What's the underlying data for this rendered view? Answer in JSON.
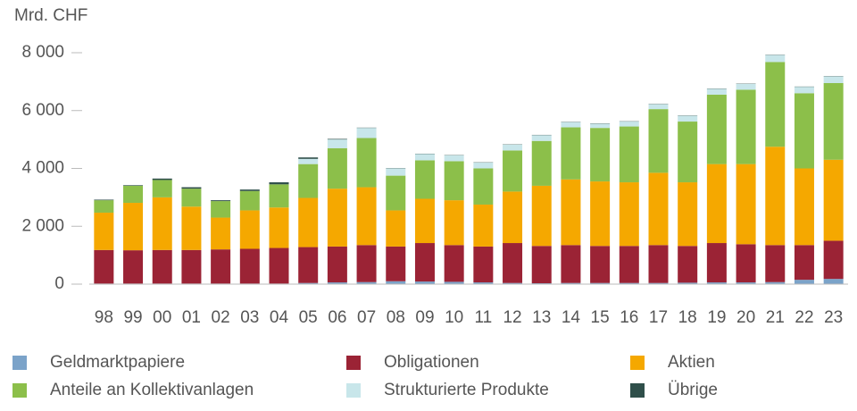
{
  "chart_data": {
    "type": "stacked_bar",
    "y_label": "Mrd. CHF",
    "categories": [
      "98",
      "99",
      "00",
      "01",
      "02",
      "03",
      "04",
      "05",
      "06",
      "07",
      "08",
      "09",
      "10",
      "11",
      "12",
      "13",
      "14",
      "15",
      "16",
      "17",
      "18",
      "19",
      "20",
      "21",
      "22",
      "23"
    ],
    "series": [
      {
        "name": "Geldmarktpapiere",
        "color": "#7ba3c9",
        "values": [
          20,
          20,
          20,
          20,
          20,
          20,
          20,
          40,
          60,
          70,
          100,
          90,
          80,
          60,
          40,
          30,
          40,
          40,
          40,
          40,
          50,
          60,
          60,
          70,
          150,
          180
        ]
      },
      {
        "name": "Obligationen",
        "color": "#9b2335",
        "values": [
          1160,
          1150,
          1160,
          1160,
          1180,
          1200,
          1230,
          1240,
          1240,
          1280,
          1200,
          1330,
          1270,
          1240,
          1380,
          1290,
          1310,
          1280,
          1280,
          1310,
          1270,
          1360,
          1320,
          1280,
          1200,
          1320
        ]
      },
      {
        "name": "Aktien",
        "color": "#f5a800",
        "values": [
          1290,
          1640,
          1820,
          1500,
          1100,
          1330,
          1400,
          1700,
          2000,
          2000,
          1250,
          1530,
          1550,
          1450,
          1780,
          2080,
          2270,
          2230,
          2200,
          2500,
          2200,
          2730,
          2770,
          3400,
          2650,
          2800
        ]
      },
      {
        "name": "Anteile an Kollektivanlagen",
        "color": "#8cbf4a",
        "values": [
          430,
          590,
          600,
          620,
          570,
          670,
          800,
          1170,
          1400,
          1700,
          1200,
          1330,
          1350,
          1250,
          1420,
          1550,
          1800,
          1850,
          1930,
          2200,
          2100,
          2400,
          2570,
          2930,
          2600,
          2650
        ]
      },
      {
        "name": "Strukturierte Produkte",
        "color": "#c8e6ea",
        "values": [
          0,
          0,
          0,
          0,
          0,
          0,
          0,
          180,
          300,
          350,
          250,
          220,
          200,
          200,
          200,
          200,
          180,
          150,
          170,
          170,
          200,
          200,
          200,
          240,
          220,
          230
        ]
      },
      {
        "name": "Übrige",
        "color": "#2f4f4a",
        "values": [
          20,
          20,
          50,
          50,
          30,
          50,
          70,
          50,
          20,
          10,
          10,
          10,
          10,
          10,
          10,
          10,
          10,
          10,
          10,
          10,
          10,
          10,
          10,
          10,
          10,
          10
        ]
      }
    ],
    "ylim": [
      0,
      8000
    ],
    "yticks": [
      0,
      {
        "value": 2000,
        "label": "2 000"
      },
      {
        "value": 4000,
        "label": "4 000"
      },
      {
        "value": 6000,
        "label": "6 000"
      },
      {
        "value": 8000,
        "label": "8 000"
      }
    ]
  }
}
